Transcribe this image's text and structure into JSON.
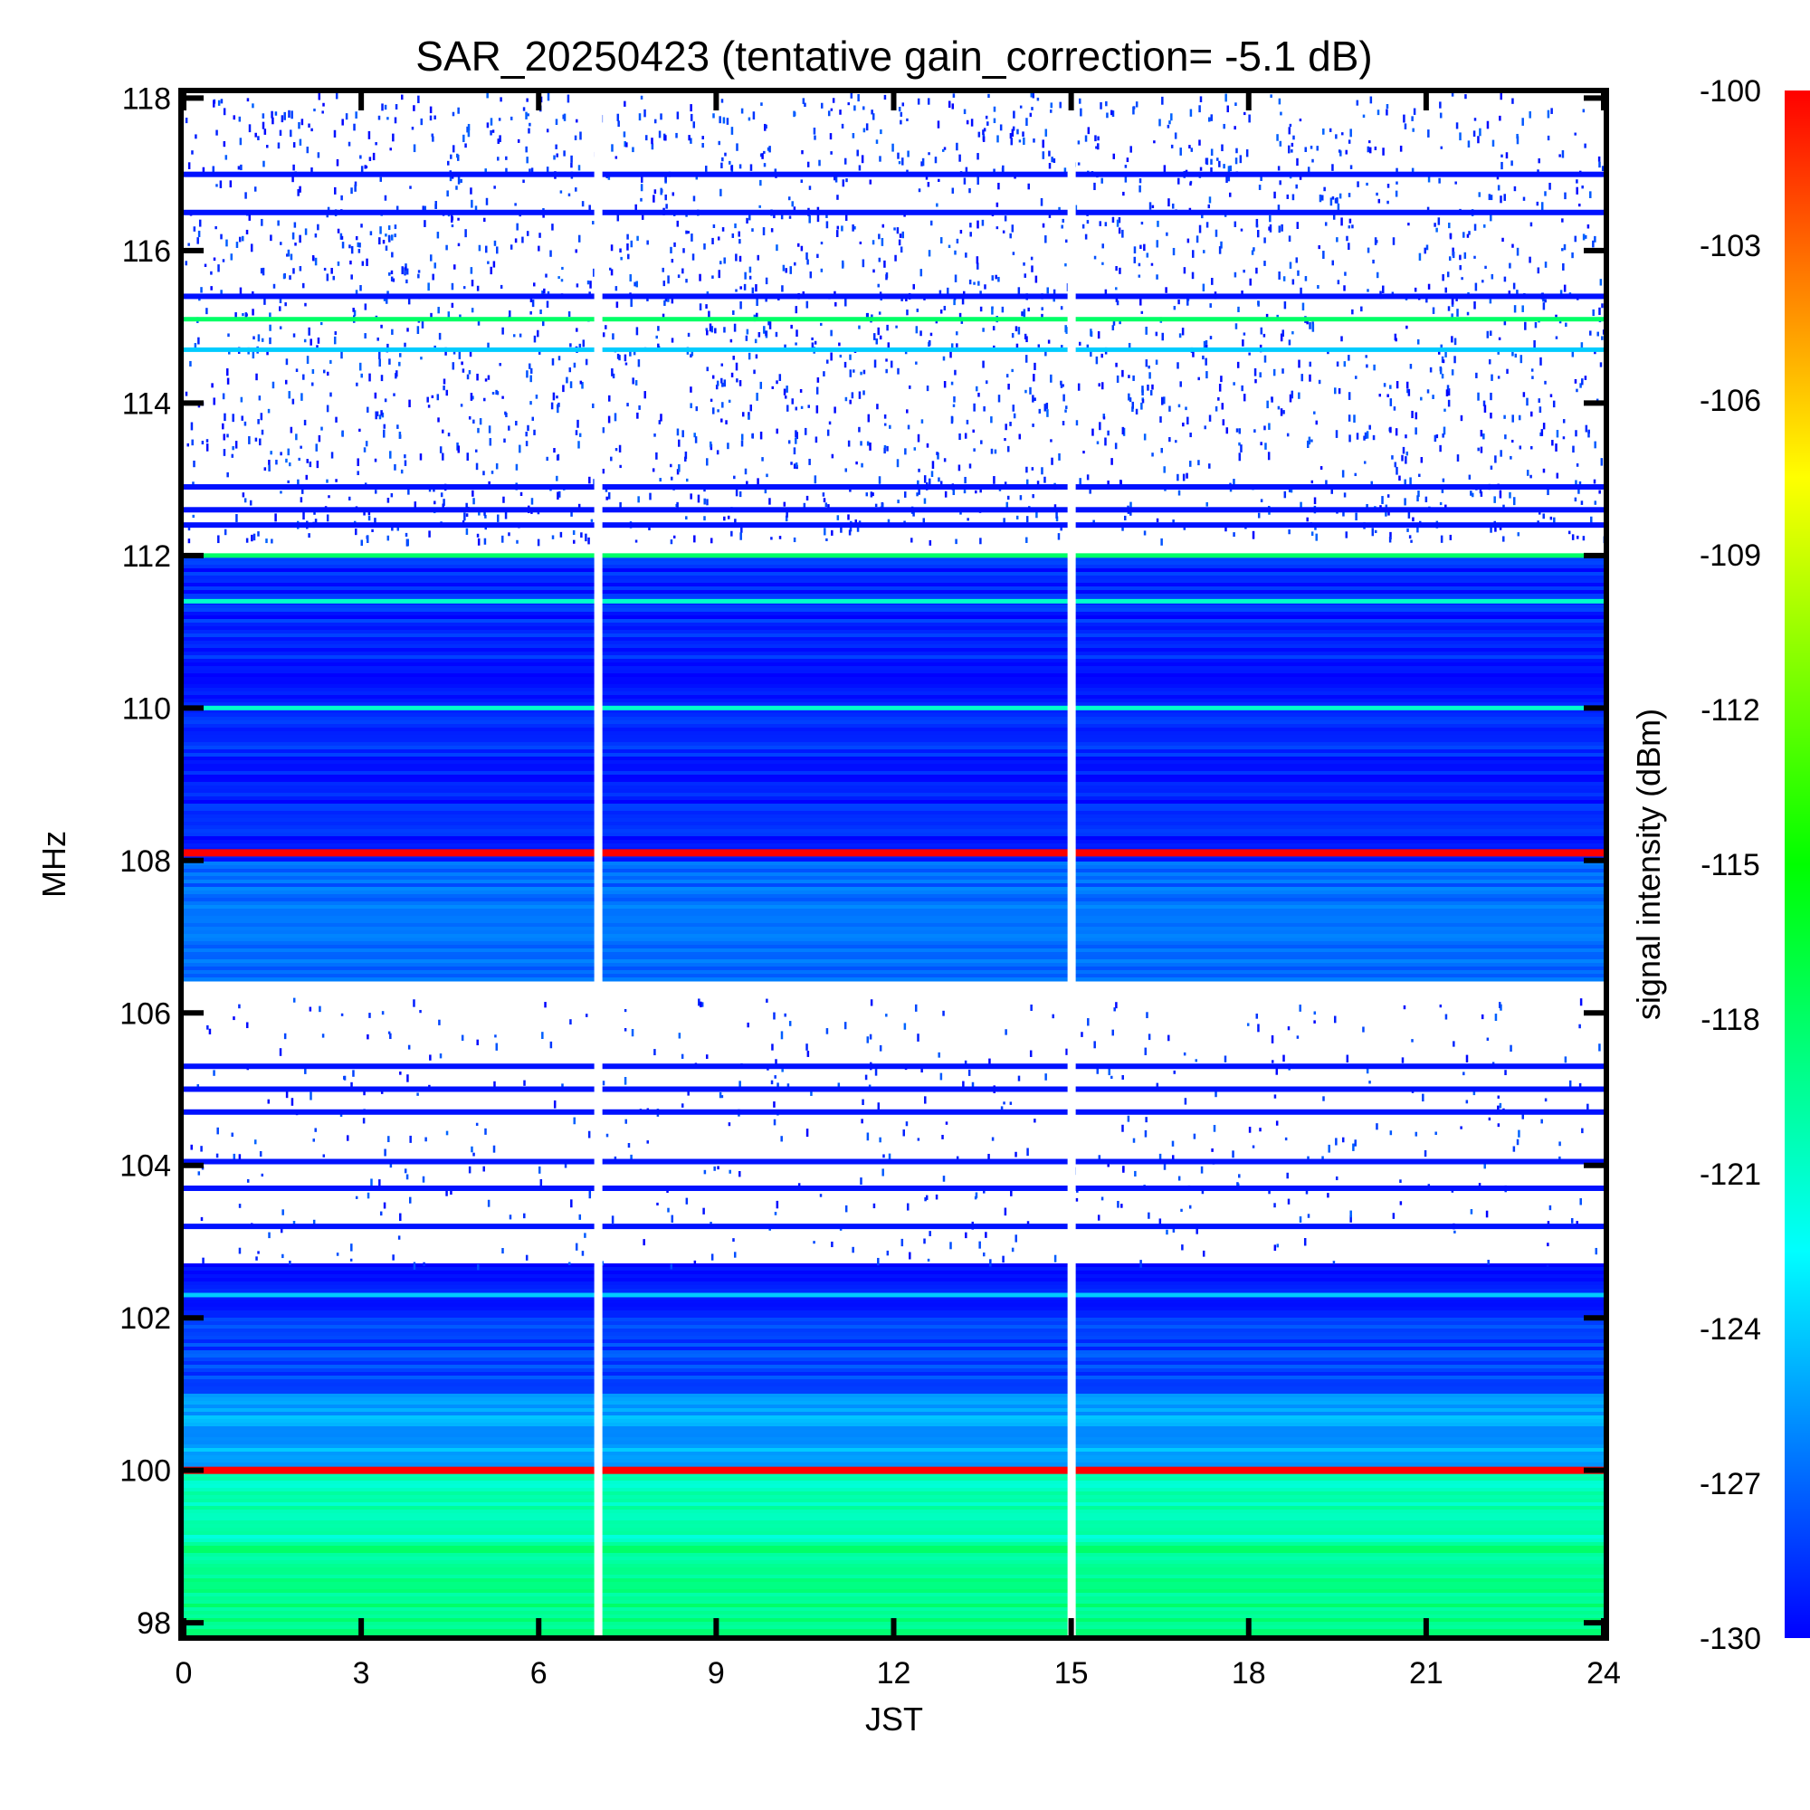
{
  "chart_data": {
    "type": "heatmap",
    "title": "SAR_20250423 (tentative gain_correction= -5.1 dB)",
    "xlabel": "JST",
    "ylabel": "MHz",
    "colorbar_label": "signal intensity (dBm)",
    "x_range": [
      0,
      24
    ],
    "y_range": [
      97.8,
      118.1
    ],
    "x_ticks": [
      "0",
      "3",
      "6",
      "9",
      "12",
      "15",
      "18",
      "21",
      "24"
    ],
    "y_ticks": [
      "98",
      "100",
      "102",
      "104",
      "106",
      "108",
      "110",
      "112",
      "114",
      "116",
      "118"
    ],
    "colorbar_range": [
      -130,
      -100
    ],
    "colorbar_ticks": [
      "-100",
      "-103",
      "-106",
      "-109",
      "-112",
      "-115",
      "-118",
      "-121",
      "-124",
      "-127",
      "-130"
    ],
    "colorscale": [
      "#0000ff",
      "#00ffff",
      "#00ff00",
      "#ffff00",
      "#ff0000"
    ],
    "data_gaps_jst": [
      7.0,
      15.0
    ],
    "notable_bands_mhz": [
      {
        "mhz": 100.0,
        "dbm": -100
      },
      {
        "mhz": 108.1,
        "dbm": -100
      },
      {
        "mhz": 112.0,
        "dbm": -118
      },
      {
        "mhz": 110.0,
        "dbm": -121
      },
      {
        "mhz": 111.4,
        "dbm": -121
      },
      {
        "mhz": 115.1,
        "dbm": -118
      },
      {
        "mhz": 114.7,
        "dbm": -124
      },
      {
        "mhz": 102.3,
        "dbm": -124
      }
    ]
  }
}
